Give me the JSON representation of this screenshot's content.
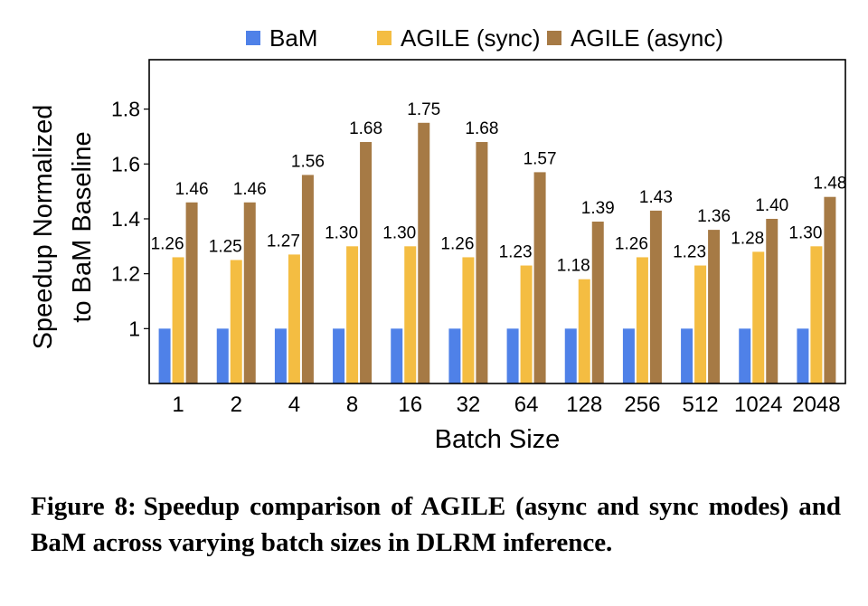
{
  "chart_data": {
    "type": "bar",
    "categories": [
      "1",
      "2",
      "4",
      "8",
      "16",
      "32",
      "64",
      "128",
      "256",
      "512",
      "1024",
      "2048"
    ],
    "series": [
      {
        "name": "BaM",
        "color": "#4f81e8",
        "values": [
          1,
          1,
          1,
          1,
          1,
          1,
          1,
          1,
          1,
          1,
          1,
          1
        ],
        "labels": null
      },
      {
        "name": "AGILE (sync)",
        "color": "#f4bd42",
        "values": [
          1.26,
          1.25,
          1.27,
          1.3,
          1.3,
          1.26,
          1.23,
          1.18,
          1.26,
          1.23,
          1.28,
          1.3
        ],
        "labels": [
          "1.26",
          "1.25",
          "1.27",
          "1.30",
          "1.30",
          "1.26",
          "1.23",
          "1.18",
          "1.26",
          "1.23",
          "1.28",
          "1.30"
        ]
      },
      {
        "name": "AGILE (async)",
        "color": "#a67a45",
        "values": [
          1.46,
          1.46,
          1.56,
          1.68,
          1.75,
          1.68,
          1.57,
          1.39,
          1.43,
          1.36,
          1.4,
          1.48
        ],
        "labels": [
          "1.46",
          "1.46",
          "1.56",
          "1.68",
          "1.75",
          "1.68",
          "1.57",
          "1.39",
          "1.43",
          "1.36",
          "1.40",
          "1.48"
        ]
      }
    ],
    "xlabel": "Batch Size",
    "ylabel_lines": [
      "Speedup Normalized",
      "to BaM Baseline"
    ],
    "ylim": [
      0.8,
      1.98
    ],
    "yticks": [
      {
        "value": 1,
        "label": "1"
      },
      {
        "value": 1.2,
        "label": "1.2"
      },
      {
        "value": 1.4,
        "label": "1.4"
      },
      {
        "value": 1.6,
        "label": "1.6"
      },
      {
        "value": 1.8,
        "label": "1.8"
      }
    ],
    "grid": false,
    "legend_position": "top"
  },
  "caption": {
    "label": "Figure 8:",
    "text": "Speedup comparison of AGILE (async and sync modes) and BaM across varying batch sizes in DLRM inference."
  }
}
